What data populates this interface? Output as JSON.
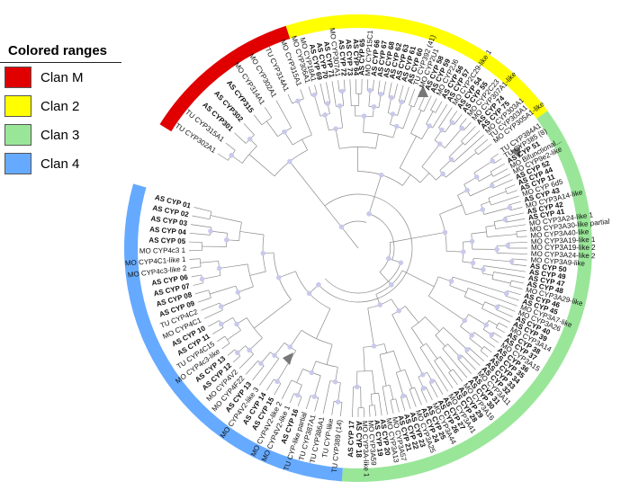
{
  "legend": {
    "title": "Colored ranges",
    "items": [
      {
        "label": "Clan M",
        "color": "#e00000"
      },
      {
        "label": "Clan 2",
        "color": "#ffff00"
      },
      {
        "label": "Clan 3",
        "color": "#99e699"
      },
      {
        "label": "Clan 4",
        "color": "#66aaff"
      }
    ]
  },
  "tree": {
    "clan_m_labels": [
      "TU CYP302A1",
      "TU CYP315A1",
      "AS CYP301",
      "AS CYP302",
      "AS CYP315",
      "MO CYP314A1",
      "MO CYP302A1",
      "TU CYP314A1",
      "MO CYP315A1"
    ],
    "clan_2_labels": [
      "MO CYP306A1",
      "MO CYP18A1",
      "AS CYP 69",
      "AS CYP 70",
      "AS CYP 71",
      "MO CYP307A1",
      "AS CYP 72",
      "AS CYP 73",
      "AS CYP 64",
      "AS CYP 65",
      "MO CYP15C1",
      "AS CYP 66",
      "AS CYP 67",
      "AS CYP 68",
      "AS CYP 62",
      "AS CYP 63",
      "AS CYP 61",
      "AS CYP 60",
      "TU CYP392 (41)",
      "MO CYP2U1",
      "AS CYP 58",
      "AS CYP 59",
      "MO CYP2J6",
      "AS CYP 56",
      "AS CYP 57",
      "MO CYP2C29-like 1",
      "AS CYP 54",
      "AS CYP 55",
      "MO CYP2C23",
      "MO CYP307A1-like",
      "AS CYP 74",
      "AS CYP 75",
      "MO CYP303A1",
      "TU CYP303A1",
      "MO CYP305A1-like"
    ],
    "clan_3_labels": [
      "TU CYP384A1",
      "TU CYP385 (8)",
      "AS CYP 51",
      "MO Bifunctional...",
      "MO CYP9e2-like",
      "AS CYP 52",
      "AS CYP 44",
      "AS CYP 11",
      "MO CYP 6d5",
      "AS CYP 43",
      "MO CYP3A14-like",
      "AS CYP 42",
      "AS CYP 41",
      "MO CYP3A24-like 1",
      "MO CYP3A30-like partial",
      "MO CYP3A40-like",
      "MO CYP3A19-like 1",
      "MO CYP3A19-like 2",
      "MO CYP3A24-like 2",
      "MO CYP3A9-like",
      "AS CYP 50",
      "AS CYP 49",
      "AS CYP 47",
      "AS CYP 48",
      "MO CYP3A29-like",
      "AS CYP 46",
      "AS CYP 45",
      "MO CYP3A7-like",
      "MO CYP3A26",
      "AS CYP 40",
      "AS CYP 39",
      "MO CYP3A14",
      "AS CYP 38",
      "AS CYP 37",
      "MO CYP3A15",
      "AS CYP 36",
      "AS CYP 35",
      "AS CYP 34",
      "AS CYP 33",
      "AS CYP 32",
      "MO CYP3A11",
      "AS CYP 31",
      "AS CYP 30",
      "MO CYP3A16",
      "AS CYP 29",
      "AS CYP 28",
      "MO CYP3A41",
      "AS CYP 27",
      "AS CYP 26",
      "MO CYP3A44",
      "AS CYP 25",
      "AS CYP 24",
      "MO CYP3A25",
      "AS CYP 23",
      "AS CYP 22",
      "AS CYP 21",
      "MO CYP3A57",
      "MO CYP3A13",
      "AS CYP 20",
      "AS CYP 19",
      "MO CYP3A59",
      "MO CYP3A-like 1",
      "AS CYP 18",
      "AS CYP 17"
    ],
    "clan_4_labels": [
      "TU CYP389 (14)",
      "TU CYP-like",
      "TU CYP386A1",
      "TU CYP387A1",
      "TU CYP-like partial",
      "AS CYP 16",
      "MO CYP4V2-like 1",
      "MO CYP4V2-like 2",
      "AS CYP 15",
      "AS CYP 14",
      "MO CYP4V2-like 3",
      "AS CYP 13",
      "MO CYP4F22",
      "MO CYP4V2",
      "AS CYP 12",
      "AS CYP 13",
      "MO CYP4c3-like",
      "TU CYP4C15",
      "AS CYP 11",
      "AS CYP 10",
      "MO CYP4C1",
      "TU CYP4C2",
      "AS CYP 09",
      "AS CYP 08",
      "AS CYP 07",
      "AS CYP 06",
      "MO CYP4c3-like 2",
      "MO CYP4C1-like 1",
      "MO CYP4c3 1",
      "AS CYP 05",
      "AS CYP 04",
      "AS CYP 03",
      "AS CYP 02",
      "AS CYP 01"
    ]
  }
}
